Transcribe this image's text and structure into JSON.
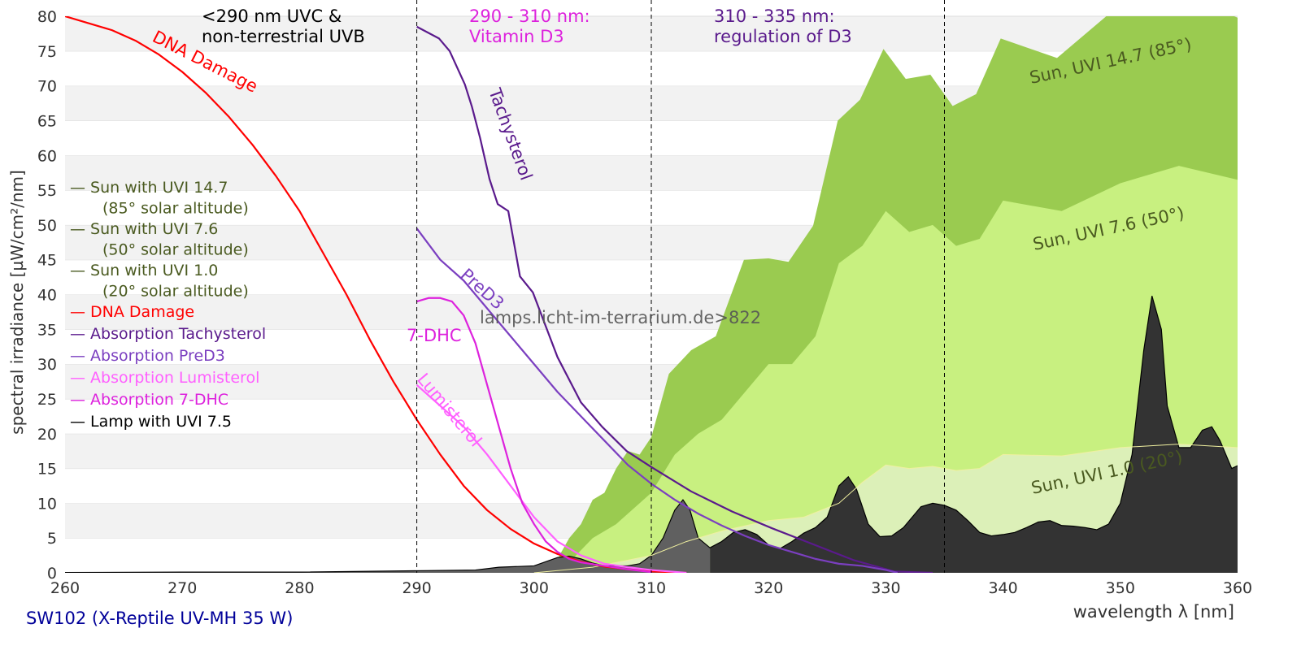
{
  "chart_data": {
    "type": "area",
    "title": "",
    "xlabel": "wavelength λ [nm]",
    "ylabel": "spectral irradiance [µW/cm²/nm]",
    "xlim": [
      260,
      360
    ],
    "ylim": [
      0,
      80
    ],
    "grid": true,
    "x_ticks": [
      "260",
      "270",
      "280",
      "290",
      "300",
      "310",
      "320",
      "330",
      "340",
      "350",
      "360"
    ],
    "y_ticks": [
      "0",
      "5",
      "10",
      "15",
      "20",
      "25",
      "30",
      "35",
      "40",
      "45",
      "50",
      "55",
      "60",
      "65",
      "70",
      "75",
      "80"
    ],
    "vlines": [
      290,
      310,
      335
    ],
    "footer": "SW102 (X-Reptile UV-MH 35 W)",
    "watermark": "lamps.licht-im-terrarium.de>822",
    "region_labels": [
      {
        "line1": "<290 nm UVC &",
        "line2": "non-terrestrial UVB",
        "color": "#000000"
      },
      {
        "line1": "290 - 310 nm:",
        "line2": "Vitamin D3",
        "color": "#dd22dd"
      },
      {
        "line1": "310 - 335 nm:",
        "line2": "regulation of D3",
        "color": "#5a1a8c"
      }
    ],
    "legend": {
      "placement": "left",
      "entries": [
        {
          "line1": "— Sun with UVI 14.7",
          "line2": "(85° solar altitude)",
          "color": "#4a5a20"
        },
        {
          "line1": "— Sun with UVI 7.6",
          "line2": "(50° solar altitude)",
          "color": "#4a5a20"
        },
        {
          "line1": "— Sun with UVI 1.0",
          "line2": "(20° solar altitude)",
          "color": "#4a5a20"
        },
        {
          "line1": "— DNA Damage",
          "color": "#ff0000"
        },
        {
          "line1": "— Absorption Tachysterol",
          "color": "#5a1a8c"
        },
        {
          "line1": "— Absorption PreD3",
          "color": "#7b3fc0"
        },
        {
          "line1": "— Absorption Lumisterol",
          "color": "#ff60ff"
        },
        {
          "line1": "— Absorption 7-DHC",
          "color": "#dd22dd"
        },
        {
          "line1": "— Lamp with UVI 7.5",
          "color": "#000000"
        }
      ]
    },
    "series": [
      {
        "name": "Sun, UVI 14.7 (85°)",
        "kind": "area",
        "color": "#9acb50",
        "x": [
          299,
          300,
          302,
          303,
          304,
          305,
          306,
          307,
          308,
          309,
          310,
          311.5,
          313.4,
          315.5,
          317.9,
          320,
          321.7,
          323.8,
          325.9,
          327.8,
          329.8,
          331.7,
          333.8,
          335.7,
          337.7,
          339.8,
          344.6,
          348.8,
          353.6,
          357.1,
          360
        ],
        "y": [
          0,
          1,
          2,
          5,
          7,
          10.5,
          11.5,
          15,
          17.5,
          17,
          19.5,
          28.6,
          32,
          34,
          45,
          45.2,
          44.7,
          49.9,
          65,
          68,
          75.3,
          71,
          71.6,
          67.1,
          68.8,
          76.8,
          74,
          80,
          83,
          81.8,
          79.8
        ]
      },
      {
        "name": "Sun, UVI 7.6 (50°)",
        "kind": "area",
        "color": "#c8f080",
        "x": [
          300,
          303,
          305,
          307,
          309,
          310,
          312,
          314,
          316,
          318,
          320,
          322,
          324,
          326,
          328,
          330,
          332,
          334,
          336,
          338,
          340,
          345,
          350,
          355,
          360
        ],
        "y": [
          0,
          1.5,
          5,
          7,
          10,
          11.5,
          17,
          20,
          22,
          26,
          30,
          30,
          34,
          44.5,
          47,
          52,
          49,
          50,
          47,
          48,
          53.5,
          52,
          56,
          58.5,
          56.5
        ]
      },
      {
        "name": "Sun, UVI 1.0 (20°)",
        "kind": "area",
        "color": "#dcf0b8",
        "x": [
          300,
          305,
          310,
          313,
          316,
          320,
          323,
          326,
          328,
          330,
          332,
          334,
          336,
          338,
          340,
          345,
          350,
          355,
          360
        ],
        "y": [
          0,
          0.8,
          2.5,
          4.5,
          6,
          7.5,
          8,
          10,
          13,
          15.5,
          15,
          15.3,
          14.7,
          15,
          17,
          16.8,
          18,
          18.5,
          18
        ]
      },
      {
        "name": "Lamp with UVI 7.5",
        "kind": "area",
        "color": "#333333",
        "color_uvb": "#606060",
        "split": 315,
        "x": [
          260,
          270,
          280,
          290,
          295,
          297,
          300,
          302,
          303,
          304,
          305,
          306,
          307,
          308,
          309,
          310,
          311,
          312,
          312.7,
          313.3,
          314,
          315,
          316,
          317,
          318,
          319,
          320,
          321,
          322,
          323,
          324,
          325,
          326,
          326.8,
          327.5,
          328.5,
          329.5,
          330.5,
          331.5,
          333,
          334,
          335,
          336,
          337,
          338,
          339,
          340,
          341,
          342,
          343,
          344,
          345,
          346,
          347,
          348,
          349,
          350,
          351,
          352,
          352.7,
          353.5,
          354,
          355,
          356,
          357,
          357.8,
          358.5,
          359.5,
          360
        ],
        "y": [
          0.05,
          0.1,
          0.1,
          0.3,
          0.4,
          0.8,
          1.0,
          2.2,
          2.4,
          2,
          1.4,
          1,
          1,
          1,
          1.3,
          2.5,
          5,
          9,
          10.5,
          9,
          5,
          3.6,
          4.5,
          5.8,
          6.2,
          5.5,
          4,
          3.5,
          4.5,
          5.7,
          6.5,
          8,
          12.5,
          13.8,
          12,
          7,
          5.2,
          5.3,
          6.5,
          9.5,
          10,
          9.7,
          9,
          7.5,
          5.8,
          5.3,
          5.5,
          5.8,
          6.5,
          7.3,
          7.5,
          6.8,
          6.7,
          6.5,
          6.2,
          7,
          10,
          17,
          32,
          39.8,
          35,
          24,
          18,
          18,
          20.5,
          21,
          19,
          15,
          15.4
        ]
      },
      {
        "name": "DNA Damage",
        "kind": "line",
        "color": "#ff0000",
        "x": [
          260,
          262,
          264,
          266,
          268,
          270,
          272,
          274,
          276,
          278,
          280,
          282,
          284,
          286,
          288,
          290,
          292,
          294,
          296,
          298,
          300,
          302,
          304,
          306,
          308,
          310,
          313
        ],
        "y": [
          80,
          79,
          78,
          76.5,
          74.5,
          72,
          69,
          65.5,
          61.5,
          57,
          52,
          46,
          40,
          33.5,
          27.5,
          22,
          17,
          12.5,
          9,
          6.3,
          4.2,
          2.7,
          1.6,
          0.9,
          0.5,
          0.2,
          0
        ]
      },
      {
        "name": "Tachysterol",
        "kind": "line",
        "color": "#5a1a8c",
        "x": [
          290,
          291.9,
          292.8,
          294.1,
          294.7,
          295.4,
          296.2,
          296.9,
          297.8,
          298.8,
          299.9,
          302,
          304,
          305.8,
          307.9,
          310,
          313.4,
          316.9,
          320.3,
          323.8,
          327.3,
          330.7,
          334
        ],
        "y": [
          78.5,
          76.8,
          75,
          70.2,
          67,
          62.5,
          56.6,
          53,
          52,
          42.6,
          40.3,
          31,
          24.5,
          21,
          17.5,
          15.2,
          11.7,
          8.8,
          6.4,
          4.1,
          1.8,
          0.2,
          0
        ]
      },
      {
        "name": "PreD3",
        "kind": "line",
        "color": "#7b3fc0",
        "x": [
          290,
          292,
          294,
          296,
          298,
          300,
          302,
          304,
          306,
          308,
          310,
          312,
          314,
          316,
          318,
          320,
          322,
          324,
          326,
          328,
          330,
          331
        ],
        "y": [
          49.5,
          45,
          42,
          38,
          34,
          30,
          26,
          22.5,
          19,
          15.5,
          12.8,
          10.5,
          8.5,
          6.8,
          5.3,
          4,
          3,
          2,
          1.3,
          1,
          0.4,
          0
        ]
      },
      {
        "name": "Lumisterol",
        "kind": "line",
        "color": "#ff60ff",
        "x": [
          290,
          292,
          294,
          296,
          298,
          300,
          302,
          304,
          306,
          308,
          310,
          313
        ],
        "y": [
          27,
          24,
          21,
          17,
          12.5,
          8,
          4.5,
          2.5,
          1.3,
          0.8,
          0.4,
          0
        ]
      },
      {
        "name": "7-DHC",
        "kind": "line",
        "color": "#dd22dd",
        "x": [
          290,
          291,
          292,
          293,
          294,
          295,
          296,
          297,
          298,
          299,
          300,
          301,
          302,
          303,
          304,
          306,
          308,
          310
        ],
        "y": [
          39,
          39.5,
          39.5,
          39,
          37,
          33,
          27,
          21,
          15,
          10,
          7,
          4.5,
          3,
          2,
          1.5,
          1,
          0.5,
          0.1
        ]
      }
    ],
    "annotations": {
      "dna": "DNA Damage",
      "tachysterol": "Tachysterol",
      "pred3": "PreD3",
      "dhc": "7-DHC",
      "lumisterol": "Lumisterol",
      "sun147": "Sun, UVI 14.7 (85°)",
      "sun76": "Sun, UVI 7.6 (50°)",
      "sun10": "Sun, UVI 1.0 (20°)"
    }
  }
}
